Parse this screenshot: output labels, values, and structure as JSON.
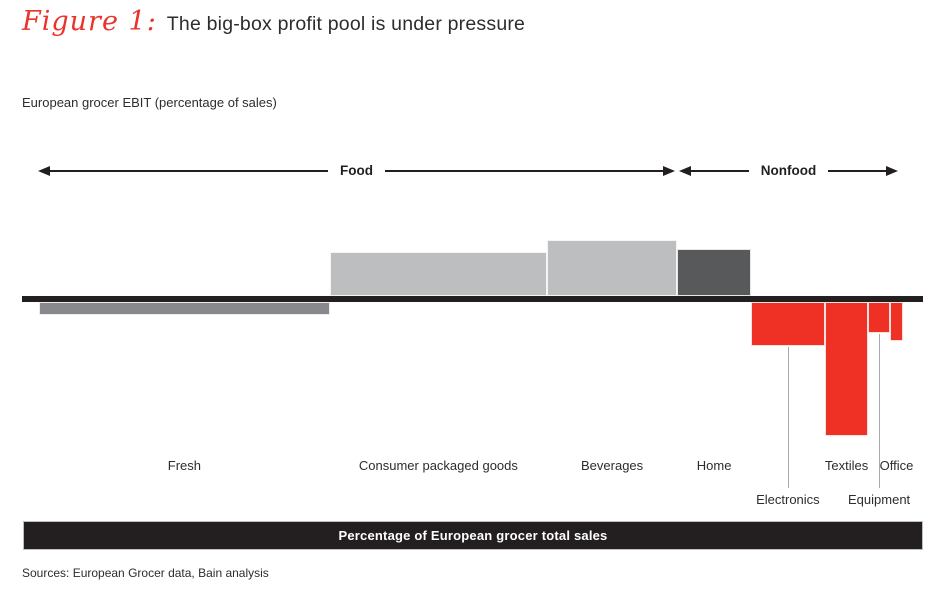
{
  "figure": {
    "label": "Figure 1:",
    "title": "The big-box profit pool is under pressure"
  },
  "subtitle": "European grocer EBIT (percentage of sales)",
  "group_arrows": [
    {
      "label": "Food"
    },
    {
      "label": "Nonfood"
    }
  ],
  "footer_axis_label": "Percentage of European grocer total sales",
  "sources": "Sources: European Grocer data, Bain analysis",
  "colors": {
    "accent_red": "#ee3124",
    "light_gray": "#bcbec0",
    "mid_gray": "#87898c",
    "dark_gray": "#58595b",
    "axis_black": "#231f20",
    "leader_gray": "#a7a9ac"
  },
  "chart_data": {
    "type": "bar",
    "subtype": "variable-width profit pool (Marimekko-style): bar width = share of total sales, bar height = EBIT margin above/below zero line",
    "title": "European grocer EBIT (percentage of sales)",
    "xlabel": "Percentage of European grocer total sales",
    "ylabel": "EBIT (percentage of sales)",
    "axis_note": "y axis has no numeric tick labels; ebit values are relative estimates read from bar heights",
    "baseline": 0,
    "legend": "off",
    "grid": "off",
    "segments": [
      {
        "name": "Fresh",
        "group": "Food",
        "sales_share_pct": 33.5,
        "ebit_relative": -13,
        "color": "#87898c",
        "label_row": 1,
        "leader_line": false
      },
      {
        "name": "Consumer packaged goods",
        "group": "Food",
        "sales_share_pct": 25,
        "ebit_relative": 44,
        "color": "#bcbec0",
        "label_row": 1,
        "leader_line": false
      },
      {
        "name": "Beverages",
        "group": "Food",
        "sales_share_pct": 15,
        "ebit_relative": 56,
        "color": "#bcbec0",
        "label_row": 1,
        "leader_line": false
      },
      {
        "name": "Home",
        "group": "Nonfood",
        "sales_share_pct": 8.5,
        "ebit_relative": 47,
        "color": "#58595b",
        "label_row": 1,
        "leader_line": false
      },
      {
        "name": "Electronics",
        "group": "Nonfood",
        "sales_share_pct": 8.5,
        "ebit_relative": -44,
        "color": "#ee3124",
        "label_row": 2,
        "leader_line": true
      },
      {
        "name": "Textiles",
        "group": "Nonfood",
        "sales_share_pct": 5,
        "ebit_relative": -134,
        "color": "#ee3124",
        "label_row": 1,
        "leader_line": false
      },
      {
        "name": "Equipment",
        "group": "Nonfood",
        "sales_share_pct": 2.5,
        "ebit_relative": -31,
        "color": "#ee3124",
        "label_row": 2,
        "leader_line": true
      },
      {
        "name": "Office",
        "group": "Nonfood",
        "sales_share_pct": 1.5,
        "ebit_relative": -39,
        "color": "#ee3124",
        "label_row": 1,
        "leader_line": false
      }
    ]
  }
}
